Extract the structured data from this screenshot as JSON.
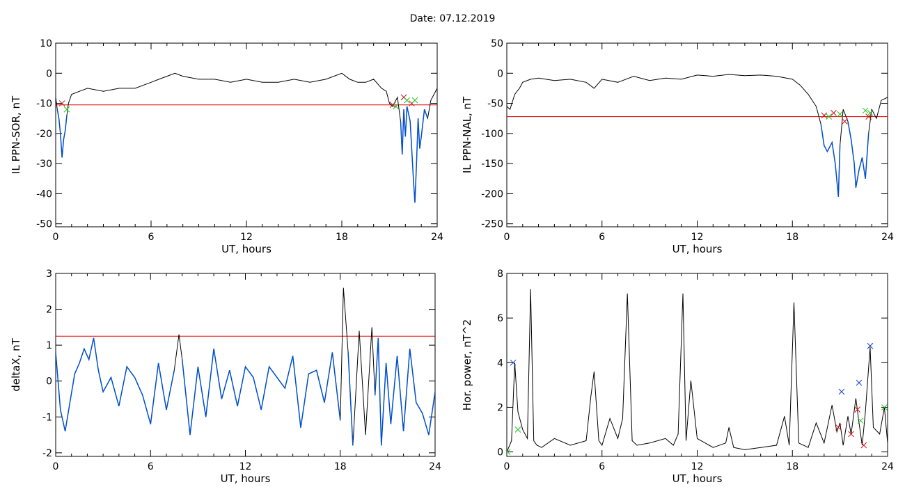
{
  "figure": {
    "title": "Date:  07.12.2019"
  },
  "colors": {
    "trace": "#000000",
    "threshold": "#e00000",
    "fill_segment": "#0050d0",
    "marker_red": "#d01010",
    "marker_green": "#20c020",
    "marker_blue": "#1040d0"
  },
  "chart_data": [
    {
      "type": "line",
      "ylabel": "IL PPN-SOR, nT",
      "xlabel": "UT, hours",
      "xlim": [
        0,
        24
      ],
      "xticks": [
        0,
        6,
        12,
        18,
        24
      ],
      "ylim": [
        -51,
        10
      ],
      "yticks": [
        10,
        0,
        -10,
        -20,
        -30,
        -40,
        -50
      ],
      "threshold": -10.5,
      "series": [
        {
          "x": [
            0,
            0.1,
            0.2,
            0.3,
            0.4,
            0.5,
            0.6,
            0.7,
            0.8,
            1,
            1.5,
            2,
            3,
            4,
            5,
            6,
            6.5,
            7,
            7.5,
            8,
            9,
            10,
            11,
            12,
            13,
            14,
            15,
            16,
            17,
            18,
            18.5,
            19,
            19.5,
            20,
            20.5,
            20.8,
            21,
            21.2,
            21.5,
            21.7,
            21.8,
            21.9,
            22,
            22.1,
            22.3,
            22.5,
            22.6,
            22.7,
            22.8,
            22.9,
            23,
            23.2,
            23.4,
            23.6,
            24
          ],
          "y": [
            -8,
            -12,
            -15,
            -20,
            -28,
            -22,
            -19,
            -14,
            -10,
            -7,
            -6,
            -5,
            -6,
            -5,
            -5,
            -3,
            -2,
            -1,
            0,
            -1,
            -2,
            -2,
            -3,
            -2,
            -3,
            -3,
            -2,
            -3,
            -2,
            0,
            -2,
            -3,
            -3,
            -2,
            -5,
            -6,
            -10,
            -11,
            -8,
            -16,
            -27,
            -12,
            -21,
            -11,
            -16,
            -35,
            -43,
            -30,
            -15,
            -25,
            -21,
            -12,
            -15,
            -9,
            -5
          ]
        }
      ],
      "markers_red": [
        {
          "x": 0.4,
          "y": -10
        },
        {
          "x": 21.2,
          "y": -10.5
        },
        {
          "x": 21.9,
          "y": -8
        },
        {
          "x": 22.4,
          "y": -10
        }
      ],
      "markers_green": [
        {
          "x": 0.7,
          "y": -12
        },
        {
          "x": 21.4,
          "y": -11
        },
        {
          "x": 22.1,
          "y": -9
        },
        {
          "x": 22.6,
          "y": -9
        }
      ]
    },
    {
      "type": "line",
      "ylabel": "IL PPN-NAL, nT",
      "xlabel": "UT, hours",
      "xlim": [
        0,
        24
      ],
      "xticks": [
        0,
        6,
        12,
        18,
        24
      ],
      "ylim": [
        -255,
        50
      ],
      "yticks": [
        50,
        0,
        -50,
        -100,
        -150,
        -200,
        -250
      ],
      "threshold": -72,
      "series": [
        {
          "x": [
            0,
            0.2,
            0.5,
            0.8,
            1,
            1.5,
            2,
            3,
            4,
            5,
            5.5,
            6,
            7,
            8,
            9,
            10,
            11,
            12,
            13,
            14,
            15,
            16,
            17,
            18,
            18.5,
            19,
            19.5,
            19.8,
            20,
            20.2,
            20.5,
            20.7,
            20.9,
            21,
            21.2,
            21.5,
            21.7,
            21.9,
            22,
            22.2,
            22.4,
            22.6,
            22.8,
            23,
            23.3,
            23.6,
            24
          ],
          "y": [
            -55,
            -60,
            -35,
            -25,
            -15,
            -10,
            -8,
            -12,
            -10,
            -15,
            -25,
            -10,
            -15,
            -5,
            -12,
            -8,
            -10,
            -3,
            -5,
            -2,
            -4,
            -3,
            -5,
            -10,
            -20,
            -35,
            -55,
            -85,
            -120,
            -130,
            -115,
            -150,
            -205,
            -120,
            -60,
            -80,
            -110,
            -150,
            -190,
            -160,
            -140,
            -175,
            -100,
            -60,
            -75,
            -45,
            -40
          ]
        }
      ],
      "markers_red": [
        {
          "x": 20.0,
          "y": -70
        },
        {
          "x": 20.6,
          "y": -66
        },
        {
          "x": 21.3,
          "y": -80
        },
        {
          "x": 22.8,
          "y": -72
        }
      ],
      "markers_green": [
        {
          "x": 20.3,
          "y": -72
        },
        {
          "x": 21.0,
          "y": -68
        },
        {
          "x": 22.6,
          "y": -62
        },
        {
          "x": 22.9,
          "y": -66
        }
      ]
    },
    {
      "type": "line",
      "ylabel": "deltaX, nT",
      "xlabel": "UT, hours",
      "xlim": [
        0,
        24
      ],
      "xticks": [
        0,
        6,
        12,
        18,
        24
      ],
      "ylim": [
        -2.1,
        3
      ],
      "yticks": [
        3,
        2,
        1,
        0,
        -1,
        -2
      ],
      "threshold": 1.25,
      "series": [
        {
          "x": [
            0,
            0.3,
            0.6,
            0.9,
            1.2,
            1.5,
            1.8,
            2.1,
            2.4,
            2.7,
            3,
            3.5,
            4,
            4.5,
            5,
            5.5,
            6,
            6.5,
            7,
            7.5,
            7.8,
            8,
            8.5,
            9,
            9.5,
            10,
            10.5,
            11,
            11.5,
            12,
            12.5,
            13,
            13.5,
            14,
            14.5,
            15,
            15.5,
            16,
            16.5,
            17,
            17.5,
            18,
            18.2,
            18.5,
            18.8,
            19.2,
            19.6,
            20,
            20.2,
            20.4,
            20.6,
            20.9,
            21.2,
            21.6,
            22,
            22.4,
            22.8,
            23.2,
            23.6,
            24
          ],
          "y": [
            0.8,
            -0.8,
            -1.4,
            -0.6,
            0.2,
            0.5,
            0.9,
            0.6,
            1.2,
            0.3,
            -0.3,
            0.1,
            -0.7,
            0.4,
            0.1,
            -0.4,
            -1.2,
            0.5,
            -0.8,
            0.3,
            1.3,
            0.6,
            -1.5,
            0.4,
            -1.0,
            0.9,
            -0.5,
            0.3,
            -0.7,
            0.4,
            0.1,
            -0.8,
            0.4,
            0.1,
            -0.2,
            0.7,
            -1.3,
            0.2,
            0.3,
            -0.6,
            0.8,
            -1.1,
            2.6,
            0.8,
            -1.8,
            1.4,
            -1.5,
            1.5,
            -0.4,
            1.2,
            -1.8,
            0.5,
            -1.2,
            0.7,
            -1.4,
            0.9,
            -0.6,
            -0.9,
            -1.5,
            -0.3
          ]
        }
      ]
    },
    {
      "type": "line",
      "ylabel": "Hor. power, nT^2",
      "xlabel": "UT, hours",
      "xlim": [
        0,
        24
      ],
      "xticks": [
        0,
        6,
        12,
        18,
        24
      ],
      "ylim": [
        -0.2,
        8
      ],
      "yticks": [
        8,
        6,
        4,
        2,
        0
      ],
      "series": [
        {
          "x": [
            0,
            0.3,
            0.5,
            0.7,
            1,
            1.3,
            1.5,
            1.7,
            1.9,
            2.2,
            3,
            4,
            5,
            5.3,
            5.5,
            5.8,
            6,
            6.5,
            7,
            7.3,
            7.6,
            7.9,
            8.2,
            9,
            10,
            10.5,
            10.8,
            11.1,
            11.3,
            11.6,
            12,
            13,
            13.8,
            14,
            14.3,
            15,
            16,
            17,
            17.5,
            17.8,
            18.1,
            18.4,
            19,
            19.5,
            20,
            20.5,
            20.8,
            21,
            21.2,
            21.5,
            21.7,
            22,
            22.2,
            22.4,
            22.6,
            22.9,
            23.1,
            23.5,
            23.8,
            24
          ],
          "y": [
            0,
            0.5,
            4.0,
            1.8,
            1.0,
            0.6,
            7.3,
            0.5,
            0.3,
            0.2,
            0.6,
            0.3,
            0.5,
            2.5,
            3.6,
            0.5,
            0.3,
            1.5,
            0.6,
            1.5,
            7.1,
            0.5,
            0.3,
            0.4,
            0.6,
            0.3,
            0.8,
            7.1,
            0.5,
            3.2,
            0.6,
            0.2,
            0.4,
            1.1,
            0.2,
            0.1,
            0.2,
            0.3,
            1.6,
            0.3,
            6.7,
            0.4,
            0.2,
            1.3,
            0.4,
            2.1,
            0.9,
            1.3,
            0.3,
            1.6,
            0.8,
            2.4,
            1.3,
            0.3,
            1.8,
            4.7,
            1.1,
            0.8,
            2.0,
            0.4
          ]
        }
      ],
      "markers_blue": [
        {
          "x": 0.4,
          "y": 4.0
        },
        {
          "x": 21.1,
          "y": 2.7
        },
        {
          "x": 22.2,
          "y": 3.1
        },
        {
          "x": 22.9,
          "y": 4.75
        }
      ],
      "markers_red": [
        {
          "x": 20.9,
          "y": 1.1
        },
        {
          "x": 21.7,
          "y": 0.8
        },
        {
          "x": 22.1,
          "y": 1.9
        },
        {
          "x": 22.5,
          "y": 0.3
        }
      ],
      "markers_green": [
        {
          "x": 0.05,
          "y": 0.0
        },
        {
          "x": 0.7,
          "y": 1.0
        },
        {
          "x": 22.3,
          "y": 1.4
        },
        {
          "x": 23.8,
          "y": 2.0
        }
      ]
    }
  ]
}
